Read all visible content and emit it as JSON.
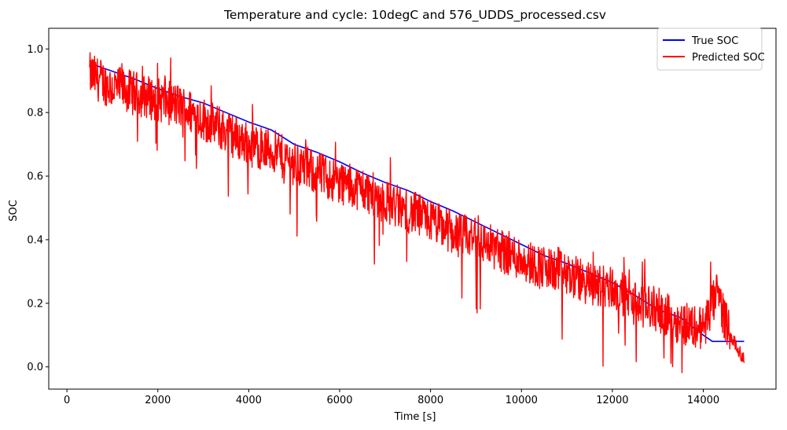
{
  "chart_data": {
    "type": "line",
    "title": "Temperature and cycle: 10degC and 576_UDDS_processed.csv",
    "xlabel": "Time [s]",
    "ylabel": "SOC",
    "xlim": [
      -400,
      15600
    ],
    "ylim": [
      -0.07,
      1.065
    ],
    "x_ticks": [
      0,
      2000,
      4000,
      6000,
      8000,
      10000,
      12000,
      14000
    ],
    "y_ticks": [
      0.0,
      0.2,
      0.4,
      0.6,
      0.8,
      1.0
    ],
    "x_tick_labels": [
      "0",
      "2000",
      "4000",
      "6000",
      "8000",
      "10000",
      "12000",
      "14000"
    ],
    "y_tick_labels": [
      "0.0",
      "0.2",
      "0.4",
      "0.6",
      "0.8",
      "1.0"
    ],
    "grid": false,
    "legend_position": "upper-right",
    "series": [
      {
        "name": "True SOC",
        "color": "#0000ff",
        "x": [
          500,
          1000,
          1500,
          2000,
          2500,
          3000,
          3500,
          4000,
          4500,
          5000,
          5500,
          6000,
          6500,
          7000,
          7500,
          8000,
          8500,
          9000,
          9500,
          10000,
          10500,
          11000,
          11500,
          12000,
          12500,
          13000,
          13500,
          14000,
          14200,
          14500,
          14900
        ],
        "y": [
          0.955,
          0.93,
          0.905,
          0.875,
          0.85,
          0.83,
          0.8,
          0.77,
          0.745,
          0.7,
          0.675,
          0.645,
          0.61,
          0.58,
          0.555,
          0.52,
          0.49,
          0.455,
          0.42,
          0.385,
          0.35,
          0.325,
          0.295,
          0.265,
          0.225,
          0.18,
          0.155,
          0.1,
          0.08,
          0.08,
          0.08
        ]
      },
      {
        "name": "Predicted SOC",
        "color": "#ff0000",
        "x": [
          500,
          1000,
          1500,
          2000,
          2500,
          3000,
          3500,
          4000,
          4500,
          5000,
          5500,
          6000,
          6500,
          7000,
          7500,
          8000,
          8500,
          9000,
          9500,
          10000,
          10500,
          11000,
          11500,
          12000,
          12500,
          13000,
          13500,
          14000,
          14300,
          14600,
          14900
        ],
        "y": [
          0.92,
          0.88,
          0.86,
          0.84,
          0.82,
          0.78,
          0.74,
          0.7,
          0.68,
          0.64,
          0.61,
          0.58,
          0.56,
          0.52,
          0.49,
          0.46,
          0.42,
          0.4,
          0.37,
          0.34,
          0.31,
          0.29,
          0.26,
          0.25,
          0.2,
          0.18,
          0.14,
          0.12,
          0.23,
          0.1,
          0.02
        ]
      }
    ]
  }
}
